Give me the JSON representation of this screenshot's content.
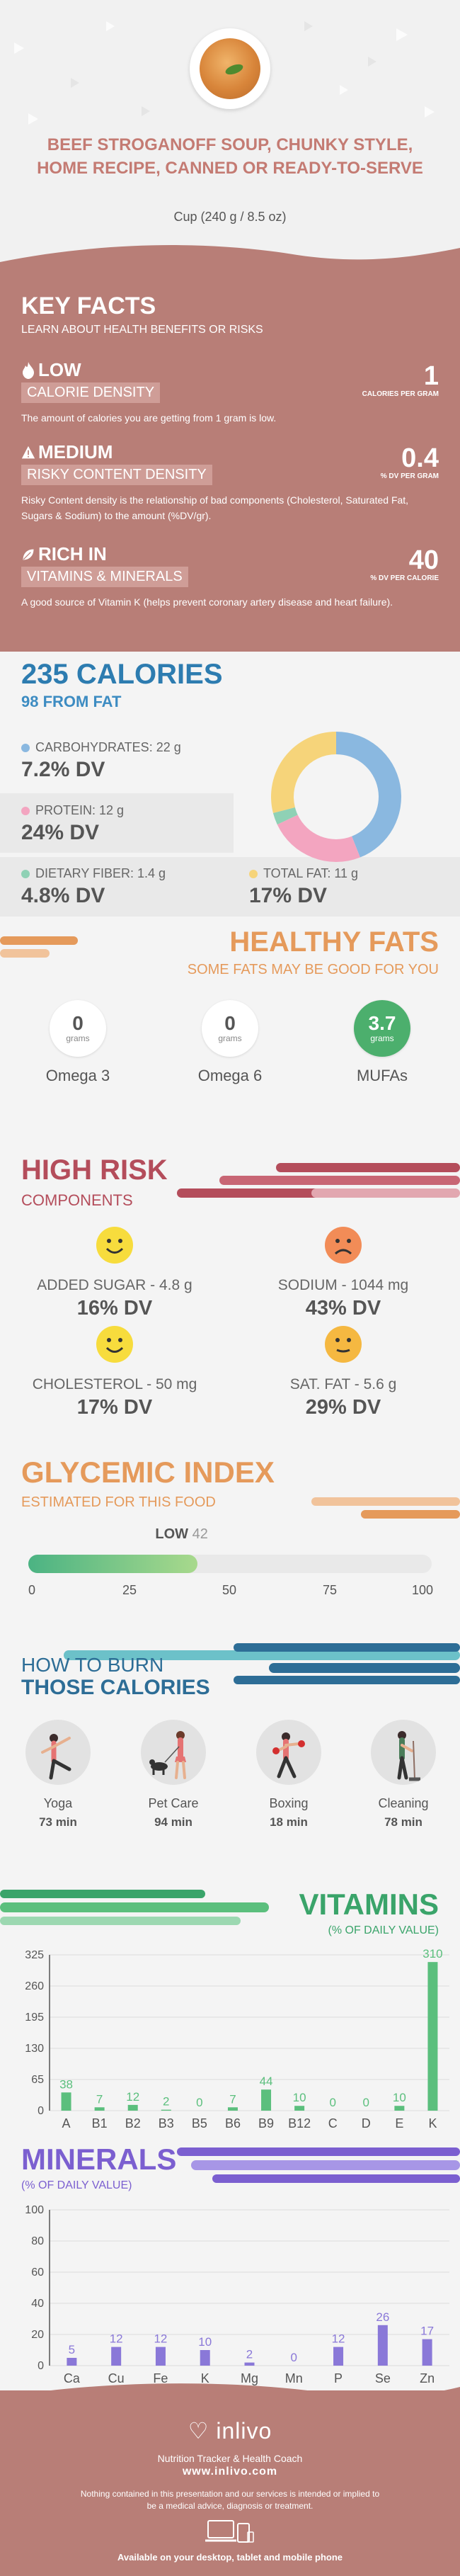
{
  "header": {
    "title": "BEEF STROGANOFF SOUP, CHUNKY STYLE, HOME RECIPE, CANNED OR READY-TO-SERVE",
    "serving": "Cup (240 g / 8.5 oz)"
  },
  "key_facts": {
    "heading": "KEY FACTS",
    "subheading": "LEARN ABOUT HEALTH BENEFITS OR RISKS",
    "items": [
      {
        "level": "LOW",
        "label": "CALORIE DENSITY",
        "value": "1",
        "unit": "CALORIES PER GRAM",
        "description": "The amount of calories you are getting from 1 gram is low."
      },
      {
        "level": "MEDIUM",
        "label": "RISKY CONTENT DENSITY",
        "value": "0.4",
        "unit": "% DV PER GRAM",
        "description": "Risky Content density is the relationship of bad components (Cholesterol, Saturated Fat, Sugars & Sodium) to the amount (%DV/gr)."
      },
      {
        "level": "RICH IN",
        "label": "VITAMINS & MINERALS",
        "value": "40",
        "unit": "% DV PER CALORIE",
        "description": "A good source of Vitamin K (helps prevent coronary artery disease and heart failure)."
      }
    ]
  },
  "calories": {
    "heading": "235 CALORIES",
    "from_fat": "98 FROM FAT",
    "nutrients": [
      {
        "label": "CARBOHYDRATES: 22 g",
        "dv": "7.2% DV",
        "color": "#8ab8e0"
      },
      {
        "label": "PROTEIN: 12 g",
        "dv": "24% DV",
        "color": "#f3a5c0"
      },
      {
        "label": "DIETARY FIBER: 1.4 g",
        "dv": "4.8% DV",
        "color": "#8fd1b5"
      },
      {
        "label": "TOTAL FAT: 11 g",
        "dv": "17% DV",
        "color": "#f6d47a"
      }
    ],
    "donut": [
      {
        "name": "carbohydrates",
        "value": 44,
        "color": "#8ab8e0"
      },
      {
        "name": "protein",
        "value": 24,
        "color": "#f3a5c0"
      },
      {
        "name": "fiber",
        "value": 3,
        "color": "#8fd1b5"
      },
      {
        "name": "fat",
        "value": 29,
        "color": "#f6d47a"
      }
    ]
  },
  "healthy_fats": {
    "heading": "HEALTHY FATS",
    "subheading": "SOME FATS MAY BE GOOD FOR YOU",
    "unit": "grams",
    "items": [
      {
        "name": "Omega 3",
        "value": "0"
      },
      {
        "name": "Omega 6",
        "value": "0"
      },
      {
        "name": "MUFAs",
        "value": "3.7"
      }
    ]
  },
  "high_risk": {
    "heading": "HIGH RISK",
    "subheading": "COMPONENTS",
    "items": [
      {
        "label": "ADDED SUGAR - 4.8 g",
        "dv": "16% DV",
        "mood": "happy"
      },
      {
        "label": "SODIUM - 1044 mg",
        "dv": "43% DV",
        "mood": "sad"
      },
      {
        "label": "CHOLESTEROL - 50 mg",
        "dv": "17% DV",
        "mood": "happy"
      },
      {
        "label": "SAT. FAT - 5.6 g",
        "dv": "29% DV",
        "mood": "neutral"
      }
    ]
  },
  "glycemic": {
    "heading": "GLYCEMIC INDEX",
    "subheading": "ESTIMATED FOR THIS FOOD",
    "level": "LOW",
    "value": 42,
    "value_label": "42",
    "ticks": [
      "0",
      "25",
      "50",
      "75",
      "100"
    ]
  },
  "burn": {
    "heading_line1": "HOW TO BURN",
    "heading_line2": "THOSE CALORIES",
    "activities": [
      {
        "name": "Yoga",
        "minutes": "73 min",
        "icon": "yoga-icon"
      },
      {
        "name": "Pet Care",
        "minutes": "94 min",
        "icon": "pet-care-icon"
      },
      {
        "name": "Boxing",
        "minutes": "18 min",
        "icon": "boxing-icon"
      },
      {
        "name": "Cleaning",
        "minutes": "78 min",
        "icon": "cleaning-icon"
      }
    ]
  },
  "chart_data": [
    {
      "type": "bar",
      "title": "VITAMINS",
      "subtitle": "(% OF DAILY VALUE)",
      "categories": [
        "A",
        "B1",
        "B2",
        "B3",
        "B5",
        "B6",
        "B9",
        "B12",
        "C",
        "D",
        "E",
        "K"
      ],
      "values": [
        38,
        7,
        12,
        2,
        0,
        7,
        44,
        10,
        0,
        0,
        10,
        310
      ],
      "value_labels": [
        "38",
        "7",
        "12",
        "2",
        "0",
        "7",
        "44",
        "10",
        "0",
        "0",
        "10",
        "310"
      ],
      "yticks": [
        "0",
        "65",
        "130",
        "195",
        "260",
        "325"
      ],
      "ylim": [
        0,
        325
      ],
      "color": "#5bbf7d"
    },
    {
      "type": "bar",
      "title": "MINERALS",
      "subtitle": "(% OF DAILY VALUE)",
      "categories": [
        "Ca",
        "Cu",
        "Fe",
        "K",
        "Mg",
        "Mn",
        "P",
        "Se",
        "Zn"
      ],
      "values": [
        5,
        12,
        12,
        10,
        2,
        0,
        12,
        26,
        17
      ],
      "value_labels": [
        "5",
        "12",
        "12",
        "10",
        "2",
        "0",
        "12",
        "26",
        "17"
      ],
      "yticks": [
        "0",
        "20",
        "40",
        "60",
        "80",
        "100"
      ],
      "ylim": [
        0,
        100
      ],
      "color": "#8a78d8"
    }
  ],
  "footer": {
    "logo": "inlivo",
    "tagline": "Nutrition Tracker & Health Coach",
    "url": "www.inlivo.com",
    "disclaimer": "Nothing contained in this presentation and our services is intended or implied to be a medical advice, diagnosis or treatment.",
    "available": "Available on your desktop, tablet and mobile phone"
  }
}
